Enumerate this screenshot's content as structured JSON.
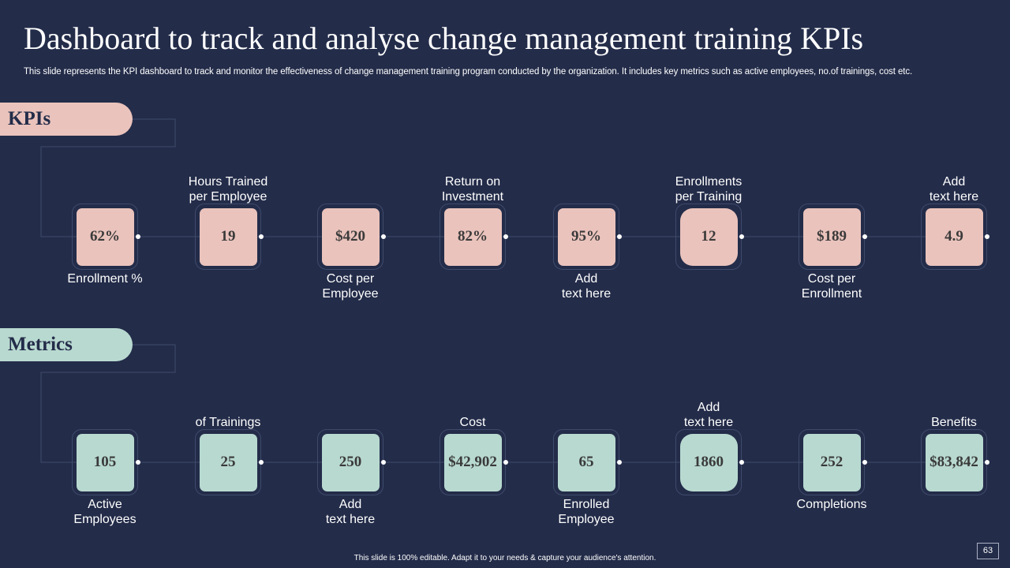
{
  "title": "Dashboard to track and analyse change management training KPIs",
  "subtitle": "This slide represents the KPI dashboard to track and monitor the effectiveness of change management training program conducted by the organization. It includes key metrics such as active employees, no.of trainings, cost etc.",
  "sections": {
    "kpis": {
      "label": "KPIs",
      "items": [
        {
          "value": "62%",
          "label": "Enrollment  %"
        },
        {
          "value": "19",
          "label": "Hours Trained\nper Employee"
        },
        {
          "value": "$420",
          "label": "Cost per\nEmployee"
        },
        {
          "value": "82%",
          "label": "Return  on\nInvestment"
        },
        {
          "value": "95%",
          "label": "Add\ntext here"
        },
        {
          "value": "12",
          "label": "Enrollments\nper Training"
        },
        {
          "value": "$189",
          "label": "Cost per\nEnrollment"
        },
        {
          "value": "4.9",
          "label": "Add\ntext here"
        }
      ]
    },
    "metrics": {
      "label": "Metrics",
      "items": [
        {
          "value": "105",
          "label": "Active\nEmployees"
        },
        {
          "value": "25",
          "label": "of Trainings"
        },
        {
          "value": "250",
          "label": "Add\ntext here"
        },
        {
          "value": "$42,902",
          "label": "Cost"
        },
        {
          "value": "65",
          "label": "Enrolled\nEmployee"
        },
        {
          "value": "1860",
          "label": "Add\ntext here"
        },
        {
          "value": "252",
          "label": "Completions"
        },
        {
          "value": "$83,842",
          "label": "Benefits"
        }
      ]
    }
  },
  "footer": "This slide is 100% editable.  Adapt it to your needs & capture your audience's attention.",
  "page_number": "63",
  "colors": {
    "background": "#232c49",
    "kpi_accent": "#eac3bc",
    "metric_accent": "#b8d9d0"
  }
}
